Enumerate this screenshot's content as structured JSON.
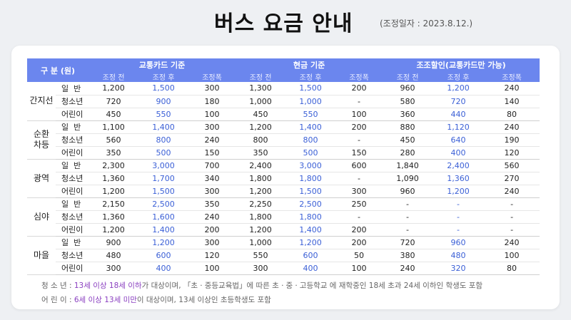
{
  "title": "버스 요금 안내",
  "adjust_date": "(조정일자 : 2023.8.12.)",
  "header": {
    "group": "구 분 (원)",
    "card": "교통카드 기준",
    "cash": "현금 기준",
    "youth": "조조할인(교통카드만 가능)",
    "sub": [
      "조정 전",
      "조정 후",
      "조정폭",
      "조정 전",
      "조정 후",
      "조정폭",
      "조정 전",
      "조정 후",
      "조정폭"
    ]
  },
  "groups": [
    {
      "name": "간지선",
      "rows": [
        {
          "type": "일  반",
          "v": [
            "1,200",
            "1,500",
            "300",
            "1,300",
            "1,500",
            "200",
            "960",
            "1,200",
            "240"
          ]
        },
        {
          "type": "청소년",
          "v": [
            "720",
            "900",
            "180",
            "1,000",
            "1,000",
            "-",
            "580",
            "720",
            "140"
          ]
        },
        {
          "type": "어린이",
          "v": [
            "450",
            "550",
            "100",
            "450",
            "550",
            "100",
            "360",
            "440",
            "80"
          ]
        }
      ]
    },
    {
      "name": "순환\n차등",
      "rows": [
        {
          "type": "일  반",
          "v": [
            "1,100",
            "1,400",
            "300",
            "1,200",
            "1,400",
            "200",
            "880",
            "1,120",
            "240"
          ]
        },
        {
          "type": "청소년",
          "v": [
            "560",
            "800",
            "240",
            "800",
            "800",
            "-",
            "450",
            "640",
            "190"
          ]
        },
        {
          "type": "어린이",
          "v": [
            "350",
            "500",
            "150",
            "350",
            "500",
            "150",
            "280",
            "400",
            "120"
          ]
        }
      ]
    },
    {
      "name": "광역",
      "rows": [
        {
          "type": "일  반",
          "v": [
            "2,300",
            "3,000",
            "700",
            "2,400",
            "3,000",
            "600",
            "1,840",
            "2,400",
            "560"
          ]
        },
        {
          "type": "청소년",
          "v": [
            "1,360",
            "1,700",
            "340",
            "1,800",
            "1,800",
            "-",
            "1,090",
            "1,360",
            "270"
          ]
        },
        {
          "type": "어린이",
          "v": [
            "1,200",
            "1,500",
            "300",
            "1,200",
            "1,500",
            "300",
            "960",
            "1,200",
            "240"
          ]
        }
      ]
    },
    {
      "name": "심야",
      "rows": [
        {
          "type": "일  반",
          "v": [
            "2,150",
            "2,500",
            "350",
            "2,250",
            "2,500",
            "250",
            "-",
            "-",
            "-"
          ]
        },
        {
          "type": "청소년",
          "v": [
            "1,360",
            "1,600",
            "240",
            "1,800",
            "1,800",
            "-",
            "-",
            "-",
            "-"
          ]
        },
        {
          "type": "어린이",
          "v": [
            "1,200",
            "1,400",
            "200",
            "1,200",
            "1,400",
            "200",
            "-",
            "-",
            "-"
          ]
        }
      ]
    },
    {
      "name": "마을",
      "rows": [
        {
          "type": "일  반",
          "v": [
            "900",
            "1,200",
            "300",
            "1,000",
            "1,200",
            "200",
            "720",
            "960",
            "240"
          ]
        },
        {
          "type": "청소년",
          "v": [
            "480",
            "600",
            "120",
            "550",
            "600",
            "50",
            "380",
            "480",
            "100"
          ]
        },
        {
          "type": "어린이",
          "v": [
            "300",
            "400",
            "100",
            "300",
            "400",
            "100",
            "240",
            "320",
            "80"
          ]
        }
      ]
    }
  ],
  "notes": {
    "youth_label": "청 소 년 : ",
    "youth_hl": "13세 이상 18세 이하",
    "youth_rest": "가 대상이며, 「초ㆍ중등교육법」에 따른 초ㆍ중ㆍ고등학교 에 재학중인 18세 초과 24세 이하인 학생도 포함",
    "child_label": "어 린 이 : ",
    "child_hl": "6세 이상 13세 미만",
    "child_rest": "이 대상이며,  13세 이상인 초등학생도 포함"
  },
  "colors": {
    "header_bg": "#6b86ee",
    "blue_value": "#3a5fd6",
    "note_highlight": "#8a3fc0"
  }
}
